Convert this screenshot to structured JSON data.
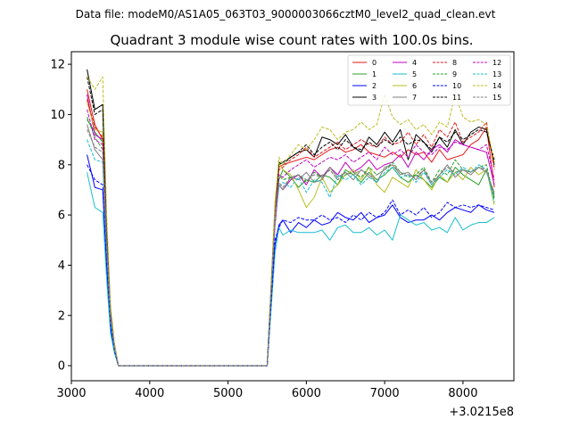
{
  "chart_data": {
    "type": "line",
    "suptitle": "Data file: modeM0/AS1A05_063T03_9000003066cztM0_level2_quad_clean.evt",
    "title": "Quadrant 3 module wise count rates with 100.0s bins.",
    "xlabel": "",
    "ylabel": "",
    "x_offset_label": "+3.0215e8",
    "xlim": [
      3000,
      8650
    ],
    "ylim": [
      -0.6,
      12.5
    ],
    "x_ticks": [
      3000,
      4000,
      5000,
      6000,
      7000,
      8000
    ],
    "x_tick_labels": [
      "3000",
      "4000",
      "5000",
      "6000",
      "7000",
      "8000"
    ],
    "y_ticks": [
      0,
      2,
      4,
      6,
      8,
      10,
      12
    ],
    "y_tick_labels": [
      "0",
      "2",
      "4",
      "6",
      "8",
      "10",
      "12"
    ],
    "grid": false,
    "legend_placement": "top-right",
    "x": [
      3200,
      3300,
      3400,
      3450,
      3500,
      3550,
      3600,
      5500,
      5600,
      5650,
      5700,
      5800,
      5900,
      6000,
      6100,
      6200,
      6300,
      6400,
      6500,
      6600,
      6700,
      6800,
      6900,
      7000,
      7100,
      7200,
      7300,
      7400,
      7500,
      7600,
      7700,
      7800,
      7900,
      8000,
      8100,
      8200,
      8300,
      8400
    ],
    "series": [
      {
        "name": "0",
        "color": "#e31a1c",
        "dash": "solid",
        "values": [
          11.0,
          9.6,
          9.0,
          5.0,
          2.0,
          0.8,
          0.0,
          0.0,
          6.0,
          7.9,
          8.0,
          8.1,
          8.2,
          8.3,
          8.2,
          8.4,
          8.6,
          8.7,
          8.5,
          8.6,
          8.8,
          8.5,
          8.4,
          8.3,
          8.5,
          8.3,
          8.6,
          8.4,
          8.5,
          8.1,
          8.6,
          8.2,
          8.3,
          8.4,
          8.8,
          9.0,
          9.5,
          7.1
        ]
      },
      {
        "name": "1",
        "color": "#2ca02c",
        "dash": "solid",
        "values": [
          9.8,
          9.3,
          8.9,
          5.0,
          2.0,
          0.8,
          0.0,
          0.0,
          6.0,
          7.4,
          7.8,
          7.5,
          7.1,
          7.4,
          7.3,
          7.6,
          7.5,
          7.2,
          7.8,
          7.6,
          7.3,
          7.7,
          7.4,
          7.6,
          7.9,
          7.5,
          7.3,
          7.6,
          7.4,
          7.1,
          7.5,
          7.3,
          7.9,
          7.6,
          7.4,
          7.2,
          7.8,
          6.7
        ]
      },
      {
        "name": "2",
        "color": "#0000ff",
        "dash": "solid",
        "values": [
          8.4,
          7.1,
          7.0,
          4.0,
          1.5,
          0.6,
          0.0,
          0.0,
          4.8,
          5.6,
          5.8,
          5.3,
          5.7,
          5.5,
          5.8,
          5.6,
          5.7,
          6.1,
          5.9,
          5.8,
          6.1,
          5.7,
          5.9,
          6.0,
          6.4,
          5.9,
          5.7,
          5.8,
          5.8,
          6.0,
          5.8,
          6.1,
          6.3,
          6.2,
          6.1,
          6.4,
          6.2,
          6.1
        ]
      },
      {
        "name": "3",
        "color": "#000000",
        "dash": "solid",
        "values": [
          11.8,
          10.2,
          10.4,
          5.5,
          2.2,
          0.8,
          0.0,
          0.0,
          6.2,
          8.0,
          8.1,
          8.3,
          8.5,
          8.6,
          8.3,
          9.1,
          9.0,
          8.8,
          9.2,
          8.7,
          8.5,
          9.1,
          8.8,
          9.3,
          8.9,
          9.4,
          8.2,
          9.2,
          8.9,
          8.5,
          9.1,
          8.7,
          9.4,
          8.8,
          9.3,
          9.5,
          9.4,
          8.0
        ]
      },
      {
        "name": "4",
        "color": "#c000c0",
        "dash": "solid",
        "values": [
          10.8,
          9.2,
          9.0,
          5.0,
          2.0,
          0.8,
          0.0,
          0.0,
          5.6,
          7.2,
          7.0,
          7.4,
          7.6,
          7.2,
          7.8,
          7.5,
          7.9,
          7.6,
          8.1,
          7.7,
          7.9,
          8.2,
          7.8,
          8.0,
          8.1,
          8.4,
          7.9,
          8.5,
          8.2,
          8.6,
          8.8,
          8.5,
          9.0,
          8.8,
          8.7,
          8.6,
          8.5,
          7.2
        ]
      },
      {
        "name": "5",
        "color": "#17becf",
        "dash": "solid",
        "values": [
          7.7,
          6.3,
          6.1,
          3.5,
          1.3,
          0.5,
          0.0,
          0.0,
          4.5,
          5.5,
          5.2,
          5.4,
          5.3,
          5.3,
          5.3,
          5.4,
          5.0,
          5.5,
          5.6,
          5.3,
          5.3,
          5.5,
          5.2,
          5.4,
          5.0,
          6.0,
          5.8,
          5.6,
          5.7,
          5.4,
          5.5,
          5.3,
          5.9,
          5.4,
          5.6,
          5.7,
          5.7,
          5.9
        ]
      },
      {
        "name": "6",
        "color": "#bcbd22",
        "dash": "solid",
        "values": [
          10.5,
          9.4,
          9.3,
          5.2,
          2.1,
          0.8,
          0.0,
          0.0,
          6.5,
          8.1,
          7.8,
          7.6,
          7.0,
          6.3,
          6.7,
          7.5,
          6.9,
          7.2,
          7.6,
          7.8,
          7.4,
          7.9,
          7.2,
          6.9,
          7.5,
          7.3,
          7.1,
          7.8,
          7.4,
          7.0,
          7.6,
          7.3,
          7.7,
          7.4,
          7.9,
          7.6,
          7.8,
          6.4
        ]
      },
      {
        "name": "7",
        "color": "#7f7f7f",
        "dash": "solid",
        "values": [
          9.6,
          8.6,
          8.2,
          4.7,
          1.9,
          0.7,
          0.0,
          0.0,
          5.9,
          7.2,
          7.0,
          7.5,
          7.4,
          7.7,
          7.3,
          7.4,
          7.9,
          7.5,
          7.7,
          7.4,
          7.8,
          7.6,
          7.3,
          7.9,
          8.0,
          7.6,
          7.7,
          7.4,
          7.8,
          7.2,
          7.6,
          8.0,
          7.5,
          7.8,
          7.6,
          7.9,
          7.7,
          6.9
        ]
      },
      {
        "name": "8",
        "color": "#e31a1c",
        "dash": "dashed",
        "values": [
          10.6,
          9.5,
          9.1,
          5.1,
          2.0,
          0.8,
          0.0,
          0.0,
          6.1,
          7.8,
          7.9,
          8.2,
          8.4,
          8.7,
          8.3,
          8.5,
          8.7,
          8.9,
          8.6,
          8.8,
          9.0,
          8.8,
          8.7,
          9.1,
          8.8,
          8.9,
          9.3,
          8.8,
          9.2,
          8.7,
          9.4,
          9.1,
          9.7,
          8.9,
          9.1,
          9.3,
          9.7,
          7.8
        ]
      },
      {
        "name": "9",
        "color": "#2ca02c",
        "dash": "dashed",
        "values": [
          9.9,
          9.1,
          8.6,
          4.9,
          1.9,
          0.7,
          0.0,
          0.0,
          6.2,
          7.6,
          7.4,
          7.5,
          7.6,
          7.3,
          7.7,
          7.5,
          7.8,
          7.4,
          7.6,
          7.7,
          7.5,
          7.9,
          7.6,
          7.8,
          8.1,
          7.7,
          7.5,
          7.6,
          7.9,
          7.3,
          7.8,
          7.6,
          8.2,
          7.8,
          7.7,
          7.9,
          8.0,
          6.6
        ]
      },
      {
        "name": "10",
        "color": "#0000ff",
        "dash": "dashed",
        "values": [
          8.0,
          7.4,
          7.2,
          4.1,
          1.6,
          0.6,
          0.0,
          0.0,
          5.0,
          5.5,
          5.8,
          5.7,
          5.9,
          5.8,
          5.8,
          6.0,
          5.8,
          5.9,
          5.7,
          6.0,
          5.8,
          6.1,
          5.9,
          6.1,
          6.6,
          6.0,
          6.2,
          6.0,
          6.3,
          5.9,
          6.1,
          6.5,
          6.3,
          6.4,
          6.3,
          6.4,
          6.3,
          6.2
        ]
      },
      {
        "name": "11",
        "color": "#000000",
        "dash": "dashed",
        "values": [
          11.5,
          10.0,
          10.2,
          5.4,
          2.2,
          0.8,
          0.0,
          0.0,
          6.2,
          8.1,
          8.0,
          8.3,
          8.5,
          8.8,
          8.4,
          8.7,
          8.9,
          8.6,
          9.0,
          8.7,
          8.6,
          8.9,
          8.7,
          9.0,
          8.8,
          9.1,
          8.8,
          9.0,
          8.9,
          8.6,
          9.1,
          8.9,
          9.3,
          9.0,
          9.2,
          9.4,
          9.3,
          8.2
        ]
      },
      {
        "name": "12",
        "color": "#c000c0",
        "dash": "dashed",
        "values": [
          10.2,
          9.0,
          8.8,
          4.9,
          2.0,
          0.8,
          0.0,
          0.0,
          6.0,
          7.6,
          7.5,
          7.8,
          8.0,
          8.2,
          7.9,
          8.1,
          8.3,
          8.2,
          8.4,
          8.1,
          8.3,
          8.5,
          8.2,
          8.7,
          8.4,
          8.6,
          8.3,
          8.8,
          8.5,
          8.4,
          8.7,
          8.6,
          8.9,
          8.8,
          8.7,
          8.6,
          8.8,
          7.4
        ]
      },
      {
        "name": "13",
        "color": "#17becf",
        "dash": "dashed",
        "values": [
          9.0,
          8.2,
          8.1,
          4.6,
          1.8,
          0.7,
          0.0,
          0.0,
          5.8,
          7.1,
          7.3,
          7.1,
          7.5,
          6.9,
          7.4,
          7.3,
          6.7,
          7.6,
          7.4,
          7.6,
          7.2,
          7.5,
          7.3,
          7.7,
          7.9,
          7.5,
          7.6,
          7.3,
          7.7,
          7.2,
          7.5,
          7.8,
          7.6,
          7.9,
          7.7,
          8.0,
          7.8,
          6.5
        ]
      },
      {
        "name": "14",
        "color": "#bcbd22",
        "dash": "dashed",
        "values": [
          11.5,
          11.0,
          11.5,
          6.0,
          2.4,
          0.9,
          0.0,
          0.0,
          6.4,
          8.3,
          8.0,
          8.4,
          8.8,
          8.6,
          9.0,
          9.5,
          9.4,
          9.0,
          9.3,
          9.4,
          9.7,
          9.4,
          9.6,
          10.8,
          9.9,
          9.6,
          9.8,
          9.4,
          9.6,
          9.2,
          9.7,
          9.5,
          10.8,
          9.9,
          9.7,
          9.8,
          9.6,
          8.1
        ]
      },
      {
        "name": "15",
        "color": "#7f7f7f",
        "dash": "dashed",
        "values": [
          9.4,
          8.7,
          8.5,
          4.8,
          1.9,
          0.7,
          0.0,
          0.0,
          5.9,
          7.3,
          7.1,
          7.5,
          7.6,
          7.4,
          7.6,
          7.5,
          7.8,
          7.4,
          7.7,
          7.6,
          7.8,
          7.5,
          7.6,
          7.8,
          8.0,
          7.7,
          7.6,
          7.5,
          7.8,
          7.3,
          7.6,
          7.9,
          7.7,
          7.8,
          7.7,
          7.9,
          7.8,
          6.8
        ]
      }
    ]
  }
}
